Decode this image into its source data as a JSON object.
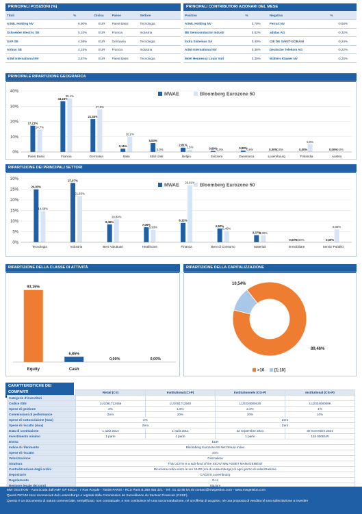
{
  "positions": {
    "title": "PRINCIPALI POSIZIONI (%)",
    "headers": [
      "Titoli",
      "%",
      "Divisa",
      "Paese",
      "Settore"
    ],
    "rows": [
      [
        "ASML Holding NV",
        "6,90%",
        "EUR",
        "Paesi Bassi",
        "Tecnologia"
      ],
      [
        "Schneider Electric SE",
        "5,10%",
        "EUR",
        "Francia",
        "Industria"
      ],
      [
        "SAP SE",
        "4,36%",
        "EUR",
        "Germania",
        "Tecnologia"
      ],
      [
        "Airbus SE",
        "4,15%",
        "EUR",
        "Francia",
        "Industria"
      ],
      [
        "ASM International NV",
        "3,87%",
        "EUR",
        "Paesi Bassi",
        "Tecnologia"
      ]
    ]
  },
  "contributors": {
    "title": "PRINCIPALI CONTRIBUTORI AZIONARI DEL MESE",
    "headers": [
      "Positivo",
      "%",
      "Negativo",
      "%"
    ],
    "rows": [
      [
        "ASML Holding NV",
        "0,70%",
        "Ferrari NV",
        "-0,58%"
      ],
      [
        "BE Semiconductor Industr",
        "0,52%",
        "adidas AG",
        "-0,32%"
      ],
      [
        "Indra Sistemas SA",
        "0,40%",
        "CIE DE SAINT-GOBAIN",
        "-0,24%"
      ],
      [
        "ASM International NV",
        "0,36%",
        "Deutsche Telekom AG",
        "-0,22%"
      ],
      [
        "Moët Hennessy Louis Vuit",
        "0,35%",
        "Wolters Kluwer NV",
        "-0,20%"
      ]
    ]
  },
  "geo_title": "PRINCIPALE RIPARTIZIONE GEOGRAFICA",
  "sector_title": "RIPARTIZIONE DEI PRINCIPALI SETTORI",
  "asset_title": "RIPARTIZIONE DELLA CLASSE DI ATTIVITÀ",
  "cap_title": "RIPARTIZIONE DELLA CAPITALIZZAZIONE",
  "colors": {
    "primary": "#1f5fa6",
    "secondary": "#d6e4f5",
    "orange": "#ee7d31",
    "light_blue": "#a9c8e8"
  },
  "chart_data": [
    {
      "type": "bar",
      "categories": [
        "Paesi Bassi",
        "Francia",
        "Germania",
        "Italia",
        "Stati Uniti",
        "Belgio",
        "Svizzera",
        "Danimarca",
        "Luxembourg",
        "Finlandia",
        "Austria"
      ],
      "series": [
        {
          "name": "MWAE",
          "values": [
            17.21,
            33.23,
            21.54,
            2.16,
            5.83,
            2.81,
            0.69,
            0.88,
            0.0,
            0.0,
            0.0
          ],
          "labels": [
            "17,21%",
            "33,23%",
            "21,54%",
            "2,16%",
            "5,83%",
            "2,81%",
            "0,69%",
            "0,88%",
            "0,00%",
            "0,00%",
            "0,00%"
          ]
        },
        {
          "name": "Bloomberg Eurozone 50",
          "values": [
            14.7,
            35.1,
            27.9,
            10.2,
            0.0,
            1.5,
            0.0,
            0.0,
            0.0,
            5.0,
            0.0
          ],
          "labels": [
            "14,7%",
            "35,1%",
            "27,9%",
            "10,2%",
            "0,0%",
            "1,5%",
            "0,0%",
            "0,0%",
            "0,0%",
            "5,0%",
            "0,0%"
          ]
        }
      ],
      "ylim": [
        0,
        40
      ],
      "yticks": [
        "0%",
        "10%",
        "20%",
        "30%",
        "40%"
      ],
      "legend": "top-center"
    },
    {
      "type": "bar",
      "categories": [
        "Tecnologia",
        "Industria",
        "Beni Voluttuari",
        "Healthcare",
        "Finanza",
        "Beni di Consumo",
        "Materiali",
        "Immobiliare",
        "Servizi Pubblici"
      ],
      "series": [
        {
          "name": "MWAE",
          "values": [
            24.93,
            27.97,
            8.46,
            7.06,
            9.12,
            6.52,
            3.37,
            0.0,
            0.0
          ],
          "labels": [
            "24,93%",
            "27,97%",
            "8,46%",
            "7,06%",
            "9,12%",
            "6,52%",
            "3,37%",
            "0,00%",
            "0,00%"
          ]
        },
        {
          "name": "Bloomberg Eurozone 50",
          "values": [
            14.68,
            21.83,
            10.84,
            5.93,
            26.91,
            5.4,
            3.3,
            0.0,
            6.05
          ],
          "labels": [
            "14,68%",
            "21,83%",
            "10,84%",
            "5,93%",
            "26,91%",
            "5,40%",
            "3,30%",
            "0,00%",
            "6,05%"
          ]
        }
      ],
      "ylim": [
        0,
        30
      ],
      "yticks": [
        "0%",
        "5%",
        "10%",
        "15%",
        "20%",
        "25%",
        "30%"
      ],
      "legend": "top-right"
    },
    {
      "type": "bar",
      "categories": [
        "Equity",
        "Cash",
        "",
        ""
      ],
      "values": [
        93.15,
        6.85,
        0.0,
        0.0
      ],
      "labels": [
        "93,15%",
        "6,85%",
        "0,00%",
        "0,00%"
      ],
      "bar_colors": [
        "#ee7d31",
        "#1f5fa6",
        "#1f5fa6",
        "#1f5fa6"
      ],
      "ylim": [
        0,
        100
      ]
    },
    {
      "type": "pie",
      "donut": true,
      "labels": [
        ">10",
        "[1;10]"
      ],
      "values": [
        89.46,
        10.54
      ],
      "value_labels": [
        "89,46%",
        "10,54%"
      ],
      "colors": [
        "#ee7d31",
        "#a9c8e8"
      ],
      "legend": "bottom"
    }
  ],
  "characteristics": {
    "title": "CARATTERISTICHE DEI COMPARTI",
    "columns": [
      "Retail (C-I)",
      "Institutional (CI-P)",
      "Institutionnels (CG-P)",
      "Institutional (CSI-P)"
    ],
    "rows": [
      {
        "label": "Categorie d'investitori",
        "cells": [
          "",
          "",
          "",
          ""
        ]
      },
      {
        "label": "Codice ISIN",
        "cells": [
          "LU1061712466",
          "LU1061712540",
          "LU2334080426",
          "LU2334080699"
        ]
      },
      {
        "label": "Spese di gestione",
        "cells": [
          "2%",
          "1.5%",
          "2.2%",
          "1%"
        ]
      },
      {
        "label": "Commissioni di performance",
        "cells": [
          "Zero",
          "20%",
          "20%",
          "10%"
        ]
      },
      {
        "label": "Spese di sottoscrizione (max)",
        "span2": [
          "2%",
          "Zero"
        ]
      },
      {
        "label": "Spese di riscatto (max)",
        "span2": [
          "Zero",
          "Zero"
        ]
      },
      {
        "label": "Data di costituzione",
        "cells": [
          "1 août 2014",
          "1 août 2014",
          "22 septembre 2021",
          "30 novembre 2021"
        ]
      },
      {
        "label": "Investimento minimo",
        "cells": [
          "1 parte",
          "1 parte",
          "1 parte",
          "125 000EUR"
        ]
      },
      {
        "label": "Divisa",
        "span": "EUR"
      },
      {
        "label": "Indice di riferimento",
        "span": "Bloomberg Eurozone 50 Net Return Index"
      },
      {
        "label": "Spese di riscatto",
        "span": "zero"
      },
      {
        "label": "Valorizzazione",
        "span": "Giornaliera"
      },
      {
        "label": "Struttura",
        "span": "This UCITS is a sub-fund of the SICAV MW ASSET MANAGEMENT"
      },
      {
        "label": "Centralizzazione degli ordini",
        "span": "Ricezione ordini entro le ore 15.00 (ora di Lussemburgo) di ogni giorno di valorizzazione"
      },
      {
        "label": "Depositario",
        "span": "CACEIS Luxembourg"
      },
      {
        "label": "Regolamento",
        "span": "G+2"
      },
      {
        "label": "Revisore legale dei conti",
        "span": "Mazars"
      }
    ]
  },
  "footer": {
    "line1": "MW GESTION - Autorizzata dall'AMF GP 92014 - 7 Rue Royale - 75008 PARIS - RCS Paris B 388 455 321 - Tel : 01 42 86 54 45 contact@mwgestion.com - www.mwgestion.com",
    "line2": "Questi OICVM sono riconosciuti dal Lussemburgo e regolati dalla Commission de Surveillance du Secteur Financier (CSSF).",
    "line3": "Questo è un documento di natura commerciale, semplificato, non contrattuale, e non costituisce né una raccomandazione, né un'offerta di acquisto, né una proposta di vendita né una sollecitazione a investire"
  }
}
